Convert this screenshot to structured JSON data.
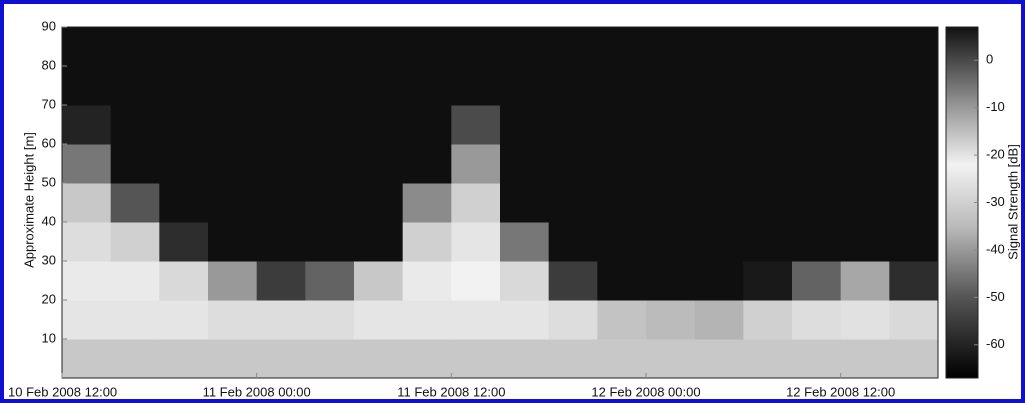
{
  "chart_data": {
    "type": "heatmap",
    "ylabel": "Approximate Height [m]",
    "colorbar_label": "Signal Strength [dB]",
    "xlim": [
      "2008-02-10T12:00",
      "2008-02-12T18:00"
    ],
    "xticks": [
      {
        "value": "2008-02-10T12:00",
        "label": "10 Feb 2008 12:00"
      },
      {
        "value": "2008-02-11T00:00",
        "label": "11 Feb 2008 00:00"
      },
      {
        "value": "2008-02-11T12:00",
        "label": "11 Feb 2008 12:00"
      },
      {
        "value": "2008-02-12T00:00",
        "label": "12 Feb 2008 00:00"
      },
      {
        "value": "2008-02-12T12:00",
        "label": "12 Feb 2008 12:00"
      }
    ],
    "ylim": [
      0,
      90
    ],
    "yticks": [
      10,
      20,
      30,
      40,
      50,
      60,
      70,
      80,
      90
    ],
    "clim": [
      -67,
      7
    ],
    "cticks": [
      0,
      -10,
      -20,
      -30,
      -40,
      -50,
      -60
    ],
    "colormap": [
      {
        "value": -67,
        "color": "#000000"
      },
      {
        "value": -50,
        "color": "#555555"
      },
      {
        "value": -35,
        "color": "#bbbbbb"
      },
      {
        "value": -22,
        "color": "#f2f2f2"
      },
      {
        "value": -10,
        "color": "#999999"
      },
      {
        "value": 7,
        "color": "#111111"
      }
    ],
    "x": [
      "2008-02-10T13:30",
      "2008-02-10T16:30",
      "2008-02-10T19:30",
      "2008-02-10T22:30",
      "2008-02-11T01:30",
      "2008-02-11T04:30",
      "2008-02-11T07:30",
      "2008-02-11T10:30",
      "2008-02-11T13:30",
      "2008-02-11T16:30",
      "2008-02-11T19:30",
      "2008-02-11T22:30",
      "2008-02-12T01:30",
      "2008-02-12T04:30",
      "2008-02-12T07:30",
      "2008-02-12T10:30",
      "2008-02-12T13:30",
      "2008-02-12T16:30"
    ],
    "y": [
      5,
      15,
      25,
      35,
      45,
      55,
      65,
      75,
      85
    ],
    "z": [
      [
        -32,
        -32,
        -32,
        -32,
        -32,
        -32,
        -32,
        -32,
        -32,
        -32,
        -32,
        -32,
        -32,
        -32,
        -32,
        -32,
        -32,
        -32
      ],
      [
        -25,
        -25,
        -25,
        -27,
        -27,
        -27,
        -25,
        -25,
        -25,
        -25,
        -27,
        -33,
        -35,
        -36,
        -30,
        -27,
        -26,
        -28
      ],
      [
        -24,
        -24,
        -28,
        -40,
        -55,
        -48,
        -32,
        -24,
        -22,
        -28,
        -55,
        -64,
        -64,
        -64,
        -62,
        -48,
        -38,
        -58
      ],
      [
        -27,
        -30,
        -58,
        -64,
        -64,
        -64,
        -64,
        -30,
        -25,
        -45,
        -64,
        -64,
        -64,
        -64,
        -64,
        -64,
        -64,
        -64
      ],
      [
        -32,
        -50,
        -64,
        -64,
        -64,
        -64,
        -64,
        -42,
        -30,
        -64,
        -64,
        -64,
        -64,
        -64,
        -64,
        -64,
        -64,
        -64
      ],
      [
        -45,
        -64,
        -64,
        -64,
        -64,
        -64,
        -64,
        -64,
        -40,
        -64,
        -64,
        -64,
        -64,
        -64,
        -64,
        -64,
        -64,
        -64
      ],
      [
        -60,
        -64,
        -64,
        -64,
        -64,
        -64,
        -64,
        -64,
        -52,
        -64,
        -64,
        -64,
        -64,
        -64,
        -64,
        -64,
        -64,
        -64
      ],
      [
        -64,
        -64,
        -64,
        -64,
        -64,
        -64,
        -64,
        -64,
        -64,
        -64,
        -64,
        -64,
        -64,
        -64,
        -64,
        -64,
        -64,
        -64
      ],
      [
        -64,
        -64,
        -64,
        -64,
        -64,
        -64,
        -64,
        -64,
        -64,
        -64,
        -64,
        -64,
        -64,
        -64,
        -64,
        -64,
        -64,
        -64
      ]
    ]
  }
}
